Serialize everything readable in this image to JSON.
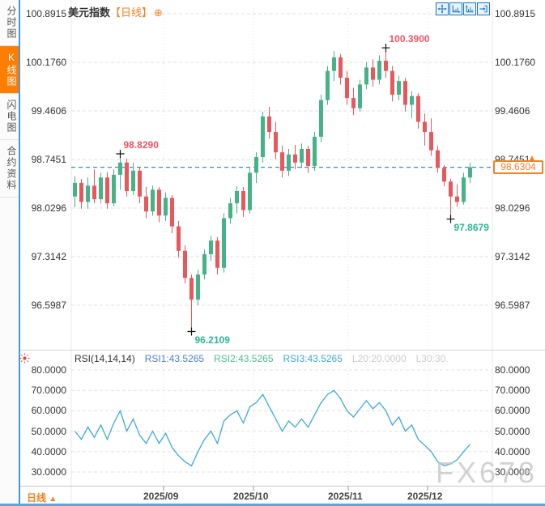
{
  "header": {
    "title": "美元指数",
    "period_tag": "【日线】",
    "add_icon": "⊕",
    "toolbar_icons": [
      "pan-icon",
      "zoom-x-axis-icon",
      "zoom-y-axis-icon",
      "exit-icon"
    ]
  },
  "sidebar": {
    "items": [
      {
        "label": "分时图",
        "active": false
      },
      {
        "label": "K线图",
        "active": true
      },
      {
        "label": "闪电图",
        "active": false
      },
      {
        "label": "合约资料",
        "active": false
      }
    ]
  },
  "main_chart": {
    "y_axis_labels": [
      "100.8915",
      "100.1760",
      "99.4606",
      "98.7451",
      "98.0296",
      "97.3142",
      "96.5987"
    ],
    "last_price_label": "98.6304",
    "last_price_arrow": "▲"
  },
  "rsi_panel": {
    "settings_icon": "sun-icon",
    "legend": [
      {
        "text": "RSI(14,14,14)",
        "color": "#333333"
      },
      {
        "text": "RSI1:43.5265",
        "color": "#4a7fd4"
      },
      {
        "text": "RSI2:43.5265",
        "color": "#4dbd8e"
      },
      {
        "text": "RSI3:43.5265",
        "color": "#3fa9d4"
      },
      {
        "text": "L20:20.0000",
        "color": "#cccccc"
      },
      {
        "text": "L30:30.",
        "color": "#cccccc"
      }
    ],
    "y_axis_labels": [
      "80.0000",
      "70.0000",
      "60.0000",
      "50.0000",
      "40.0000",
      "30.0000"
    ]
  },
  "footer": {
    "period_label": "日线",
    "arrow": "▲"
  },
  "watermark": "FX678",
  "colors": {
    "up": "#45b287",
    "down": "#e8575c",
    "price_line": "#2e8de5",
    "accent_orange": "#f58220",
    "marker_high": "#ef5565",
    "marker_low": "#2cb693",
    "rsi_line": "#3fa9d4",
    "grid": "#e2e2e2"
  },
  "chart_data": [
    {
      "type": "candlestick",
      "title": "美元指数 日线",
      "y_ticks": [
        100.8915,
        100.176,
        99.4606,
        98.7451,
        98.0296,
        97.3142,
        96.5987
      ],
      "x_ticks": [
        "2025/09",
        "2025/10",
        "2025/11",
        "2025/12"
      ],
      "last_price": 98.6304,
      "markers": [
        {
          "index": 7,
          "price": 98.829,
          "kind": "high",
          "label": "98.8290"
        },
        {
          "index": 18,
          "price": 96.2109,
          "kind": "low",
          "label": "96.2109"
        },
        {
          "index": 48,
          "price": 100.39,
          "kind": "high",
          "label": "100.3900"
        },
        {
          "index": 58,
          "price": 97.8679,
          "kind": "low",
          "label": "97.8679"
        }
      ],
      "ohlc": [
        [
          98.2,
          98.5,
          98.04,
          98.4
        ],
        [
          98.4,
          98.46,
          98.02,
          98.12
        ],
        [
          98.12,
          98.48,
          98.02,
          98.36
        ],
        [
          98.36,
          98.6,
          98.1,
          98.16
        ],
        [
          98.16,
          98.55,
          98.1,
          98.48
        ],
        [
          98.48,
          98.56,
          98.02,
          98.1
        ],
        [
          98.1,
          98.6,
          98.06,
          98.52
        ],
        [
          98.52,
          98.829,
          98.3,
          98.7
        ],
        [
          98.7,
          98.76,
          98.2,
          98.28
        ],
        [
          98.28,
          98.7,
          98.22,
          98.58
        ],
        [
          98.58,
          98.64,
          98.1,
          98.2
        ],
        [
          98.2,
          98.34,
          97.88,
          97.98
        ],
        [
          97.98,
          98.36,
          97.92,
          98.3
        ],
        [
          98.3,
          98.34,
          97.82,
          97.92
        ],
        [
          97.92,
          98.26,
          97.84,
          98.18
        ],
        [
          98.18,
          98.22,
          97.66,
          97.76
        ],
        [
          97.76,
          97.84,
          97.3,
          97.4
        ],
        [
          97.4,
          97.48,
          96.92,
          97.0
        ],
        [
          97.0,
          97.05,
          96.2109,
          96.68
        ],
        [
          96.68,
          97.12,
          96.6,
          97.05
        ],
        [
          97.05,
          97.42,
          96.98,
          97.35
        ],
        [
          97.35,
          97.62,
          97.25,
          97.55
        ],
        [
          97.55,
          97.6,
          97.05,
          97.15
        ],
        [
          97.15,
          97.95,
          97.08,
          97.88
        ],
        [
          97.88,
          98.18,
          97.8,
          98.1
        ],
        [
          98.1,
          98.35,
          97.95,
          98.28
        ],
        [
          98.28,
          98.34,
          97.9,
          98.0
        ],
        [
          98.0,
          98.62,
          97.95,
          98.55
        ],
        [
          98.55,
          98.85,
          98.4,
          98.78
        ],
        [
          98.78,
          99.45,
          98.7,
          99.38
        ],
        [
          99.38,
          99.52,
          99.05,
          99.15
        ],
        [
          99.15,
          99.3,
          98.75,
          98.85
        ],
        [
          98.85,
          98.95,
          98.48,
          98.58
        ],
        [
          98.58,
          98.9,
          98.5,
          98.82
        ],
        [
          98.82,
          98.96,
          98.6,
          98.7
        ],
        [
          98.7,
          98.98,
          98.62,
          98.9
        ],
        [
          98.9,
          98.95,
          98.55,
          98.65
        ],
        [
          98.65,
          99.15,
          98.58,
          99.08
        ],
        [
          99.08,
          99.7,
          99.0,
          99.62
        ],
        [
          99.62,
          100.12,
          99.55,
          100.05
        ],
        [
          100.05,
          100.34,
          99.9,
          100.25
        ],
        [
          100.25,
          100.3,
          99.85,
          99.95
        ],
        [
          99.95,
          100.05,
          99.55,
          99.65
        ],
        [
          99.65,
          99.8,
          99.4,
          99.5
        ],
        [
          99.5,
          99.92,
          99.45,
          99.85
        ],
        [
          99.85,
          100.18,
          99.78,
          100.1
        ],
        [
          100.1,
          100.22,
          99.82,
          99.92
        ],
        [
          99.92,
          100.28,
          99.85,
          100.2
        ],
        [
          100.2,
          100.39,
          99.95,
          100.05
        ],
        [
          100.05,
          100.12,
          99.6,
          99.7
        ],
        [
          99.7,
          99.98,
          99.62,
          99.9
        ],
        [
          99.9,
          99.95,
          99.45,
          99.55
        ],
        [
          99.55,
          99.75,
          99.35,
          99.68
        ],
        [
          99.68,
          99.72,
          99.2,
          99.3
        ],
        [
          99.3,
          99.42,
          98.95,
          99.15
        ],
        [
          99.15,
          99.35,
          98.8,
          98.88
        ],
        [
          98.88,
          98.95,
          98.55,
          98.62
        ],
        [
          98.62,
          98.66,
          98.35,
          98.42
        ],
        [
          98.42,
          98.46,
          97.8679,
          98.2
        ],
        [
          98.2,
          98.38,
          98.05,
          98.12
        ],
        [
          98.12,
          98.55,
          98.08,
          98.48
        ],
        [
          98.48,
          98.7,
          98.4,
          98.6304
        ]
      ]
    },
    {
      "type": "line",
      "title": "RSI(14,14,14)",
      "legend_values": {
        "RSI1": 43.5265,
        "RSI2": 43.5265,
        "RSI3": 43.5265,
        "L20": 20.0,
        "L30": 30.0
      },
      "y_ticks": [
        80,
        70,
        60,
        50,
        40,
        30
      ],
      "values": [
        50,
        46,
        52,
        47,
        53,
        46,
        54,
        60,
        50,
        56,
        48,
        44,
        50,
        44,
        49,
        42,
        38,
        35,
        33,
        40,
        46,
        50,
        44,
        55,
        58,
        60,
        54,
        62,
        64,
        68,
        62,
        56,
        50,
        55,
        52,
        56,
        52,
        58,
        64,
        68,
        70,
        66,
        60,
        57,
        61,
        65,
        61,
        64,
        60,
        53,
        57,
        50,
        53,
        46,
        43,
        40,
        35,
        33,
        34,
        36,
        40,
        43.53
      ]
    }
  ]
}
